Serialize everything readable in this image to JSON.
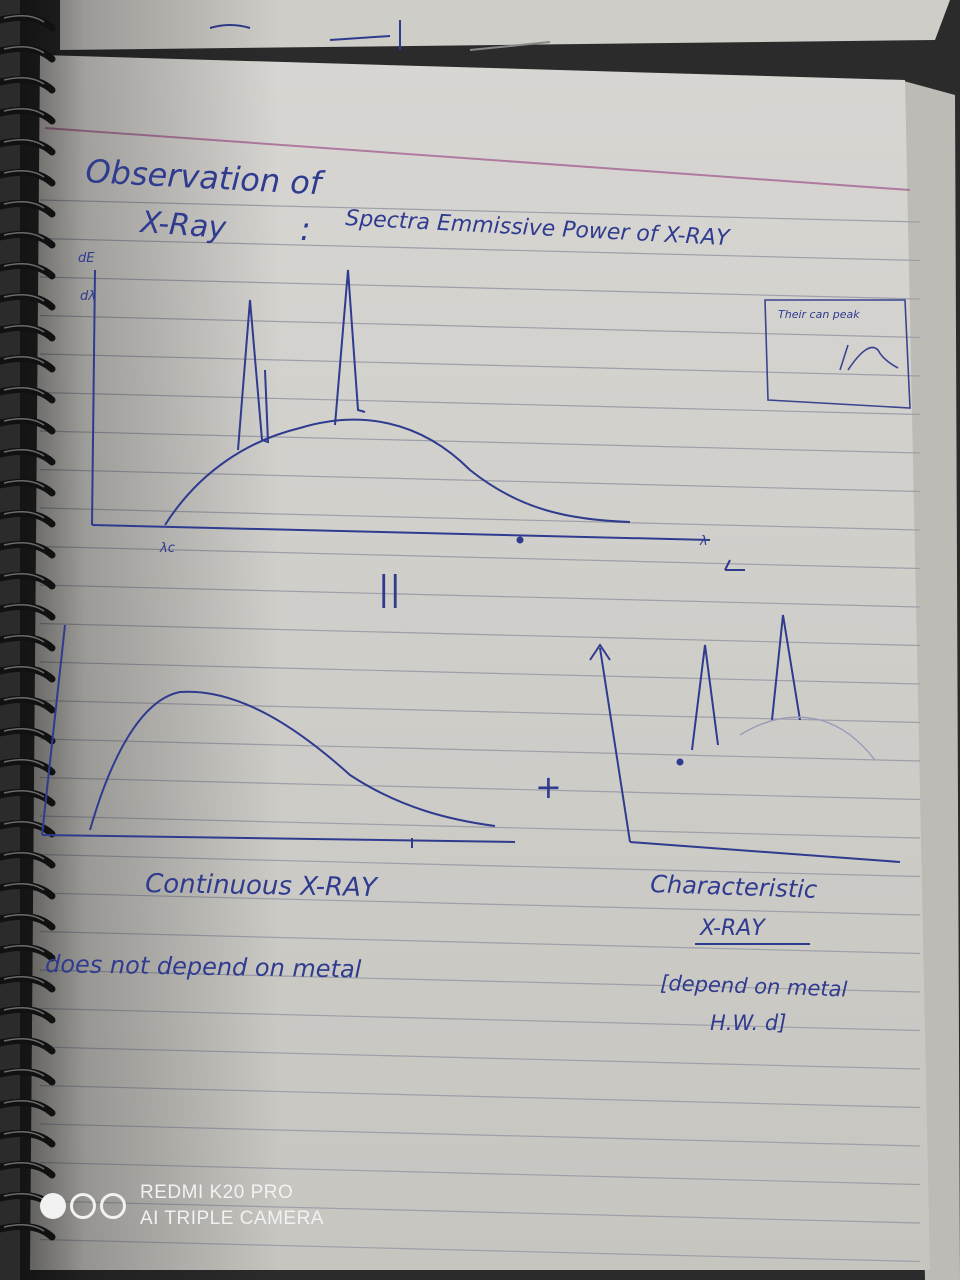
{
  "notebook": {
    "heading": "Observation of",
    "topic_word": "X-Ray",
    "topic_subtitle": "Spectra Emmissive Power of X-RAY",
    "box_note": "Their can peak",
    "graph1": {
      "y_label_top": "dE",
      "y_label_bottom": "dλ",
      "x_start_label": "λc",
      "x_end_label": "λ"
    },
    "equals_mark": "||",
    "plus_mark": "+",
    "label_continuous": "Continuous X-RAY",
    "note_continuous": "does not depend on metal",
    "label_characteristic_1": "Characteristic",
    "label_characteristic_2": "X-RAY",
    "note_characteristic_1": "[depend on metal",
    "note_characteristic_2": "H.W. d]"
  },
  "top_scribble": "Practical",
  "watermark": {
    "line1": "REDMI K20 PRO",
    "line2": "AI TRIPLE CAMERA"
  }
}
